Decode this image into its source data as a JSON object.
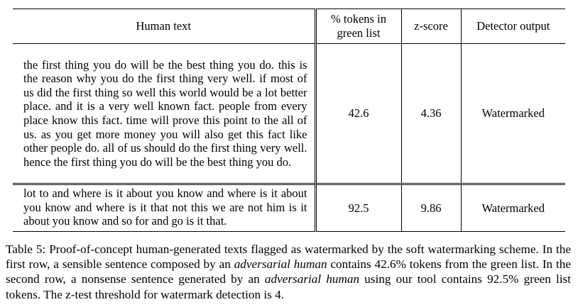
{
  "table": {
    "headers": {
      "human_text": "Human text",
      "pct_tokens_line1": "% tokens in",
      "pct_tokens_line2": "green list",
      "zscore": "z-score",
      "detector": "Detector output"
    },
    "rows": [
      {
        "text": "the first thing you do will be the best thing you do. this is the reason why you do the first thing very well. if most of us did the first thing so well this world would be a lot better place. and it is a very well known fact. people from every place know this fact. time will prove this point to the all of us. as you get more money you will also get this fact like other people do. all of us should do the first thing very well. hence the first thing you do will be the best thing you do.",
        "pct": "42.6",
        "zscore": "4.36",
        "output": "Watermarked"
      },
      {
        "text": "lot to and where is it about you know and where is it about you know and where is it that not this we are not him is it about you know and so for and go is it that.",
        "pct": "92.5",
        "zscore": "9.86",
        "output": "Watermarked"
      }
    ]
  },
  "caption": {
    "part1": "Table 5: Proof-of-concept human-generated texts flagged as watermarked by the soft watermarking scheme. In the first row, a sensible sentence composed by an ",
    "italic1": "adversarial human",
    "part2": " contains 42.6% tokens from the green list. In the second row, a nonsense sentence generated by an ",
    "italic2": "adversarial human",
    "part3": " using our tool contains 92.5% green list tokens. The z-test threshold for watermark detection is 4."
  }
}
